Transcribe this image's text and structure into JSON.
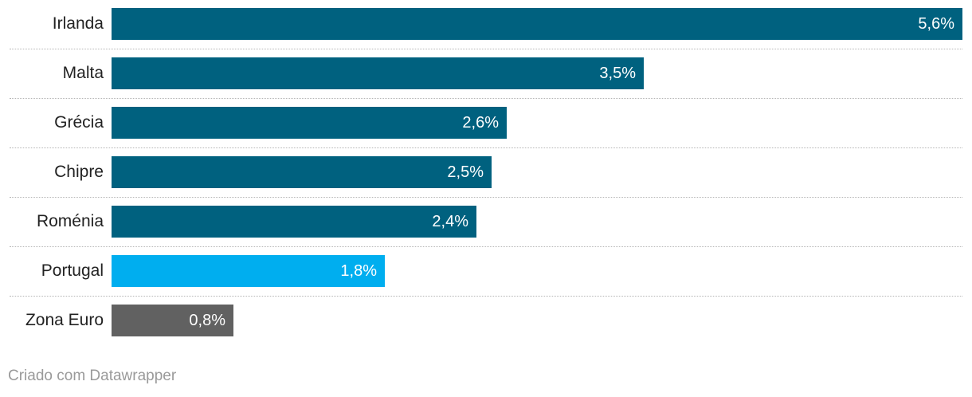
{
  "chart_data": {
    "type": "bar",
    "orientation": "horizontal",
    "categories": [
      "Irlanda",
      "Malta",
      "Grécia",
      "Chipre",
      "Roménia",
      "Portugal",
      "Zona Euro"
    ],
    "values": [
      5.6,
      3.5,
      2.6,
      2.5,
      2.4,
      1.8,
      0.8
    ],
    "value_labels": [
      "5,6%",
      "3,5%",
      "2,6%",
      "2,5%",
      "2,4%",
      "1,8%",
      "0,8%"
    ],
    "colors": [
      "#00617f",
      "#00617f",
      "#00617f",
      "#00617f",
      "#00617f",
      "#00aeef",
      "#616161"
    ],
    "xlim": [
      0,
      5.6
    ],
    "grid": false
  },
  "footer": {
    "credit": "Criado com Datawrapper"
  }
}
